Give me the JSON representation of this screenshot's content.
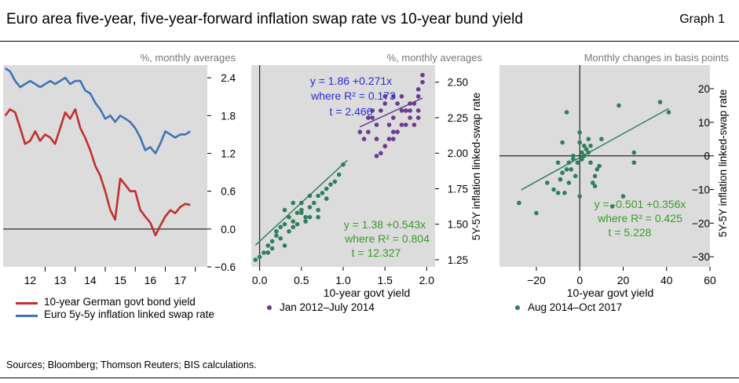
{
  "header": {
    "title": "Euro area five-year, five-year-forward inflation swap rate vs 10-year bund yield",
    "graph_label": "Graph 1"
  },
  "footer": {
    "sources": "Sources; Bloomberg; Thomson Reuters; BIS calculations."
  },
  "colors": {
    "red": "#c0302e",
    "blue": "#3f74b5",
    "purple": "#6a3b8f",
    "green": "#2f7f5f",
    "panel_bg": "#dcdcdc",
    "annot_blue": "#2b2bd9",
    "annot_green": "#3a9a2a"
  },
  "chart_data": [
    {
      "type": "line",
      "unit_note": "%, monthly averages",
      "x_ticks": [
        "12",
        "13",
        "14",
        "15",
        "16",
        "17"
      ],
      "y_ticks": [
        "2.4",
        "1.8",
        "1.2",
        "0.6",
        "0.0",
        "−0.6"
      ],
      "ylim": [
        -0.6,
        2.6
      ],
      "xlim": [
        2011.6,
        2018.4
      ],
      "series": [
        {
          "name": "10-year German govt bond yield",
          "color": "#c0302e",
          "x": [
            2011.67,
            2011.83,
            2012.0,
            2012.17,
            2012.33,
            2012.5,
            2012.67,
            2012.83,
            2013.0,
            2013.17,
            2013.33,
            2013.5,
            2013.67,
            2013.83,
            2014.0,
            2014.17,
            2014.33,
            2014.5,
            2014.67,
            2014.83,
            2015.0,
            2015.17,
            2015.33,
            2015.5,
            2015.67,
            2015.83,
            2016.0,
            2016.17,
            2016.33,
            2016.5,
            2016.67,
            2016.83,
            2017.0,
            2017.17,
            2017.33,
            2017.5,
            2017.67,
            2017.83
          ],
          "y": [
            1.8,
            1.9,
            1.85,
            1.6,
            1.35,
            1.4,
            1.55,
            1.4,
            1.5,
            1.45,
            1.35,
            1.6,
            1.85,
            1.75,
            1.9,
            1.6,
            1.45,
            1.25,
            1.0,
            0.85,
            0.6,
            0.3,
            0.15,
            0.8,
            0.7,
            0.6,
            0.6,
            0.3,
            0.2,
            0.1,
            -0.1,
            0.05,
            0.2,
            0.3,
            0.25,
            0.35,
            0.4,
            0.38
          ]
        },
        {
          "name": "Euro 5y-5y inflation linked swap rate",
          "color": "#3f74b5",
          "x": [
            2011.67,
            2011.83,
            2012.0,
            2012.17,
            2012.33,
            2012.5,
            2012.67,
            2012.83,
            2013.0,
            2013.17,
            2013.33,
            2013.5,
            2013.67,
            2013.83,
            2014.0,
            2014.17,
            2014.33,
            2014.5,
            2014.67,
            2014.83,
            2015.0,
            2015.17,
            2015.33,
            2015.5,
            2015.67,
            2015.83,
            2016.0,
            2016.17,
            2016.33,
            2016.5,
            2016.67,
            2016.83,
            2017.0,
            2017.17,
            2017.33,
            2017.5,
            2017.67,
            2017.83
          ],
          "y": [
            2.55,
            2.5,
            2.35,
            2.25,
            2.3,
            2.35,
            2.3,
            2.25,
            2.3,
            2.35,
            2.3,
            2.35,
            2.4,
            2.3,
            2.35,
            2.35,
            2.2,
            2.15,
            2.0,
            1.9,
            1.75,
            1.8,
            1.7,
            1.8,
            1.75,
            1.7,
            1.6,
            1.45,
            1.25,
            1.3,
            1.2,
            1.35,
            1.55,
            1.5,
            1.45,
            1.5,
            1.5,
            1.55
          ]
        }
      ]
    },
    {
      "type": "scatter",
      "unit_note": "%, monthly averages",
      "xlabel": "10-year govt yield",
      "ylabel": "5Y-5Y inflation linked-swap rate",
      "x_ticks": [
        "0.0",
        "0.5",
        "1.0",
        "1.5",
        "2.0"
      ],
      "y_ticks": [
        "2.50",
        "2.25",
        "2.00",
        "1.75",
        "1.50",
        "1.25"
      ],
      "xlim": [
        -0.1,
        2.1
      ],
      "ylim": [
        1.2,
        2.62
      ],
      "series": [
        {
          "name": "Jan 2012–July 2014",
          "color": "#6a3b8f",
          "fit": {
            "slope": 0.271,
            "intercept": 1.86,
            "x_range": [
              1.2,
              1.95
            ]
          },
          "x": [
            1.3,
            1.35,
            1.4,
            1.45,
            1.5,
            1.55,
            1.6,
            1.65,
            1.7,
            1.75,
            1.8,
            1.85,
            1.9,
            1.95,
            1.4,
            1.5,
            1.6,
            1.7,
            1.75,
            1.8,
            1.85,
            1.9,
            1.45,
            1.55,
            1.65,
            1.3,
            1.35,
            1.5,
            1.6,
            1.7,
            1.8,
            1.9,
            1.95,
            1.4,
            1.6,
            1.75,
            1.9,
            1.2,
            1.25,
            1.5
          ],
          "y": [
            2.15,
            2.25,
            2.2,
            2.3,
            2.35,
            2.2,
            2.25,
            2.35,
            2.4,
            2.3,
            2.25,
            2.35,
            2.45,
            2.55,
            2.1,
            2.05,
            2.15,
            2.2,
            2.3,
            2.35,
            2.2,
            2.25,
            2.0,
            2.1,
            2.15,
            2.25,
            2.3,
            2.4,
            2.4,
            2.3,
            2.3,
            2.4,
            2.5,
            1.98,
            2.1,
            2.2,
            2.3,
            2.15,
            2.1,
            2.05
          ]
        },
        {
          "name": "",
          "color": "#2f7f5f",
          "fit": {
            "slope": 0.543,
            "intercept": 1.38,
            "x_range": [
              -0.05,
              1.05
            ]
          },
          "x": [
            -0.05,
            0.0,
            0.05,
            0.1,
            0.15,
            0.2,
            0.25,
            0.3,
            0.35,
            0.4,
            0.45,
            0.5,
            0.55,
            0.6,
            0.65,
            0.7,
            0.75,
            0.8,
            0.85,
            0.9,
            0.95,
            1.0,
            0.2,
            0.3,
            0.4,
            0.5,
            0.6,
            0.7,
            0.35,
            0.45,
            0.55,
            0.25,
            0.15,
            0.4,
            0.6,
            0.8,
            0.3,
            0.5,
            0.7,
            0.1
          ],
          "y": [
            1.25,
            1.27,
            1.3,
            1.35,
            1.38,
            1.45,
            1.48,
            1.5,
            1.55,
            1.52,
            1.58,
            1.6,
            1.55,
            1.62,
            1.65,
            1.7,
            1.72,
            1.75,
            1.78,
            1.8,
            1.85,
            1.92,
            1.42,
            1.6,
            1.65,
            1.65,
            1.55,
            1.6,
            1.45,
            1.5,
            1.52,
            1.4,
            1.33,
            1.48,
            1.7,
            1.68,
            1.35,
            1.58,
            1.55,
            1.3
          ]
        }
      ],
      "annotations": [
        {
          "lines": [
            "y = 1.86 +0.271x",
            "where R² = 0.173",
            "t = 2.466"
          ]
        },
        {
          "lines": [
            "y = 1.38 +0.543x",
            "where R² = 0.804",
            "t = 12.327"
          ]
        }
      ]
    },
    {
      "type": "scatter",
      "unit_note": "Monthly  changes in basis points",
      "xlabel": "10-year govt yield",
      "ylabel": "5Y-5Y inflation linked-swap rate",
      "x_ticks": [
        "−20",
        "0",
        "20",
        "40",
        "60"
      ],
      "y_ticks": [
        "20",
        "10",
        "0",
        "−10",
        "−20",
        "−30"
      ],
      "xlim": [
        -37,
        60
      ],
      "ylim": [
        -33,
        27
      ],
      "series": [
        {
          "name": "Aug 2014–Oct 2017",
          "color": "#2f7f5f",
          "fit": {
            "slope": 0.356,
            "intercept": -0.501,
            "x_range": [
              -27,
              41
            ]
          },
          "x": [
            -28,
            -20,
            -15,
            -12,
            -10,
            -10,
            -9,
            -8,
            -7,
            -6,
            -5,
            -5,
            -4,
            -3,
            -2,
            -1,
            0,
            0,
            1,
            1,
            2,
            3,
            4,
            5,
            5,
            6,
            7,
            8,
            9,
            10,
            -8,
            -9,
            -6,
            -3,
            0,
            2,
            4,
            7,
            25,
            25,
            18,
            37,
            15,
            20,
            41
          ],
          "y": [
            -14,
            -17,
            -8,
            -10,
            -11,
            -2,
            -7,
            -5,
            -11,
            -4,
            -8,
            -2,
            -4,
            -1,
            -6,
            -2,
            7,
            4,
            1,
            -1,
            0,
            2,
            5,
            3,
            -2,
            -8,
            -6,
            -4,
            -3,
            5,
            4,
            -7,
            13,
            0,
            -12,
            3,
            1,
            -9,
            -2,
            1,
            15,
            16,
            -15,
            -12,
            13
          ]
        }
      ],
      "annotations": [
        {
          "lines": [
            "y = -0.501 +0.356x",
            "where R² = 0.425",
            "t = 5.228"
          ]
        }
      ]
    }
  ]
}
